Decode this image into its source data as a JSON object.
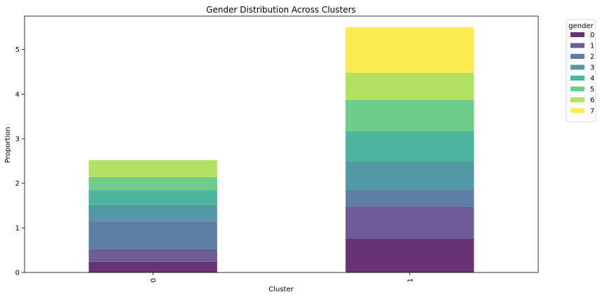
{
  "chart_data": {
    "type": "bar",
    "stacked": true,
    "title": "Gender Distribution Across Clusters",
    "xlabel": "Cluster",
    "ylabel": "Proportion",
    "categories": [
      "0",
      "1"
    ],
    "ylim": [
      0,
      5.75
    ],
    "yticks": [
      0,
      1,
      2,
      3,
      4,
      5
    ],
    "legend": {
      "title": "gender",
      "placement": "outside-top-right"
    },
    "series": [
      {
        "name": "0",
        "color": "#440154",
        "values": [
          0.24,
          0.76
        ]
      },
      {
        "name": "1",
        "color": "#46327e",
        "values": [
          0.28,
          0.72
        ]
      },
      {
        "name": "2",
        "color": "#365c8d",
        "values": [
          0.63,
          0.38
        ]
      },
      {
        "name": "3",
        "color": "#277f8e",
        "values": [
          0.36,
          0.63
        ]
      },
      {
        "name": "4",
        "color": "#1fa187",
        "values": [
          0.34,
          0.68
        ]
      },
      {
        "name": "5",
        "color": "#4ac16d",
        "values": [
          0.29,
          0.7
        ]
      },
      {
        "name": "6",
        "color": "#a0da39",
        "values": [
          0.38,
          0.61
        ]
      },
      {
        "name": "7",
        "color": "#fde725",
        "values": [
          0.0,
          1.02
        ]
      }
    ]
  }
}
